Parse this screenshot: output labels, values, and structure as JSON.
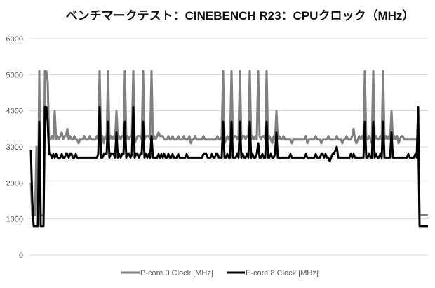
{
  "chart_data": {
    "type": "line",
    "title": "ベンチマークテスト：CINEBENCH R23：CPUクロック（MHz）",
    "xlabel": "",
    "ylabel": "",
    "ylim": [
      0,
      6000
    ],
    "yticks": [
      "0",
      "1000",
      "2000",
      "3000",
      "4000",
      "5000",
      "6000"
    ],
    "grid": true,
    "legend_position": "bottom",
    "series": [
      {
        "name": "P-core 0 Clock [MHz]",
        "color": "#808080",
        "values": [
          2000,
          1100,
          1100,
          1100,
          3000,
          1100,
          5100,
          1100,
          1100,
          1100,
          5100,
          5100,
          4800,
          3200,
          3200,
          3300,
          3200,
          4000,
          3200,
          3300,
          3200,
          3300,
          3400,
          3200,
          3300,
          3300,
          3500,
          3200,
          3300,
          3200,
          3200,
          3300,
          3200,
          3200,
          3100,
          3200,
          3200,
          3200,
          3300,
          3200,
          3200,
          3200,
          3300,
          3200,
          3200,
          3200,
          3200,
          3300,
          3200,
          5100,
          3200,
          3300,
          3100,
          3300,
          3200,
          5100,
          3200,
          3300,
          3200,
          3300,
          3200,
          4000,
          3200,
          3300,
          3200,
          3300,
          3300,
          5100,
          3200,
          3300,
          3200,
          3300,
          3300,
          5100,
          3100,
          3200,
          3300,
          3300,
          3300,
          3200,
          5100,
          3200,
          3300,
          3300,
          3300,
          3200,
          5100,
          3200,
          3300,
          3200,
          3300,
          3400,
          3300,
          3300,
          3300,
          3200,
          3200,
          3200,
          3300,
          3200,
          3200,
          3300,
          3200,
          3200,
          3200,
          3300,
          3200,
          3200,
          3200,
          3300,
          3200,
          3200,
          3200,
          3300,
          3100,
          3200,
          3200,
          3300,
          3200,
          3200,
          3200,
          3200,
          3200,
          3300,
          3200,
          3200,
          3200,
          3200,
          3200,
          3200,
          3200,
          3200,
          3200,
          3300,
          3200,
          3200,
          3300,
          5100,
          3100,
          3200,
          3300,
          3200,
          3300,
          5100,
          3200,
          3300,
          3300,
          3200,
          3300,
          5100,
          3200,
          3300,
          3300,
          3200,
          3300,
          3300,
          5100,
          3200,
          3300,
          3200,
          3300,
          3200,
          5100,
          3300,
          3200,
          3300,
          3300,
          3200,
          5100,
          3200,
          3300,
          3200,
          3100,
          3300,
          3200,
          4000,
          3200,
          3300,
          3200,
          3200,
          3300,
          3200,
          3200,
          3200,
          3200,
          3200,
          3100,
          3200,
          3200,
          3200,
          3200,
          3200,
          3200,
          3200,
          3200,
          3200,
          3300,
          3100,
          3200,
          3200,
          3200,
          3200,
          3200,
          3300,
          3200,
          3200,
          3200,
          3100,
          3200,
          3200,
          3200,
          3200,
          3300,
          3200,
          3200,
          3200,
          3200,
          3200,
          3300,
          3200,
          3200,
          3200,
          3100,
          3200,
          3200,
          3300,
          3200,
          3200,
          3200,
          3300,
          3500,
          3200,
          3100,
          3200,
          3300,
          3200,
          3300,
          3200,
          5100,
          3200,
          3200,
          3300,
          3200,
          3100,
          5100,
          3200,
          3300,
          3200,
          3200,
          3300,
          3200,
          5100,
          3200,
          3300,
          3200,
          3300,
          3200,
          4000,
          3200,
          3300,
          3200,
          3300,
          3100,
          3200,
          3300,
          3300,
          3200,
          3200,
          3200,
          3200,
          3200,
          3200,
          3200,
          3200,
          3200,
          3200,
          3200,
          1100,
          1100,
          1100,
          1100,
          1100,
          1100,
          1100
        ]
      },
      {
        "name": "E-core 8 Clock [MHz]",
        "color": "#000000",
        "values": [
          2900,
          1500,
          800,
          800,
          800,
          800,
          3700,
          800,
          800,
          800,
          4100,
          4100,
          3700,
          2800,
          2800,
          2700,
          2800,
          2700,
          2800,
          2700,
          2700,
          2700,
          2800,
          2700,
          2700,
          2800,
          2800,
          2700,
          2800,
          2800,
          2700,
          2700,
          2800,
          2700,
          2700,
          2700,
          2700,
          2700,
          2700,
          2700,
          2700,
          2700,
          2700,
          2700,
          2700,
          2700,
          2700,
          2700,
          2800,
          4100,
          2700,
          2700,
          2800,
          2800,
          2800,
          3700,
          2700,
          2800,
          2800,
          2800,
          2700,
          3400,
          2700,
          2800,
          2700,
          2800,
          2800,
          3700,
          2700,
          2800,
          2800,
          2700,
          2800,
          4100,
          2700,
          2800,
          2800,
          2700,
          2800,
          2800,
          3700,
          2700,
          2800,
          2700,
          2800,
          2700,
          3300,
          2700,
          2700,
          2700,
          2700,
          2800,
          2700,
          2800,
          2700,
          2800,
          2700,
          2700,
          2800,
          2700,
          2700,
          2800,
          2700,
          2700,
          2700,
          2800,
          2700,
          2700,
          2700,
          2700,
          2700,
          2800,
          2700,
          2700,
          2700,
          2700,
          2700,
          2700,
          2700,
          2700,
          2700,
          2700,
          2700,
          2800,
          2800,
          2800,
          2700,
          2700,
          2700,
          2800,
          2700,
          2700,
          2800,
          2800,
          2700,
          2700,
          2700,
          3700,
          2700,
          2700,
          2800,
          2700,
          2700,
          3700,
          2700,
          2700,
          2700,
          2800,
          2700,
          3700,
          2700,
          2800,
          2700,
          2700,
          2800,
          2700,
          3700,
          2700,
          2800,
          2700,
          2700,
          2800,
          3100,
          2700,
          2700,
          2800,
          2700,
          2700,
          3700,
          2700,
          2700,
          2800,
          2700,
          2700,
          2800,
          3400,
          2700,
          2700,
          2700,
          2700,
          2700,
          2700,
          2700,
          2700,
          2700,
          2800,
          2700,
          2700,
          2700,
          2700,
          2700,
          2700,
          2700,
          2700,
          2700,
          2700,
          2800,
          2700,
          2700,
          2700,
          2700,
          2700,
          2700,
          2800,
          2700,
          2700,
          2700,
          2800,
          2800,
          2700,
          2800,
          2700,
          2700,
          2600,
          2700,
          2800,
          2800,
          2900,
          3000,
          2700,
          2700,
          2700,
          2700,
          2700,
          2700,
          2700,
          2700,
          2700,
          2800,
          2700,
          2800,
          2700,
          2700,
          2700,
          2700,
          2700,
          2700,
          2700,
          3700,
          2700,
          2700,
          2800,
          2700,
          2700,
          3700,
          2700,
          2800,
          2700,
          2700,
          2800,
          2700,
          3700,
          2700,
          2700,
          2700,
          2700,
          2700,
          3400,
          2700,
          2700,
          2700,
          2700,
          2700,
          2700,
          2700,
          2700,
          2700,
          2700,
          2700,
          2800,
          2700,
          2700,
          2700,
          2700,
          2800,
          2700,
          4100,
          800,
          800,
          800,
          800,
          800,
          800,
          800
        ]
      }
    ]
  }
}
